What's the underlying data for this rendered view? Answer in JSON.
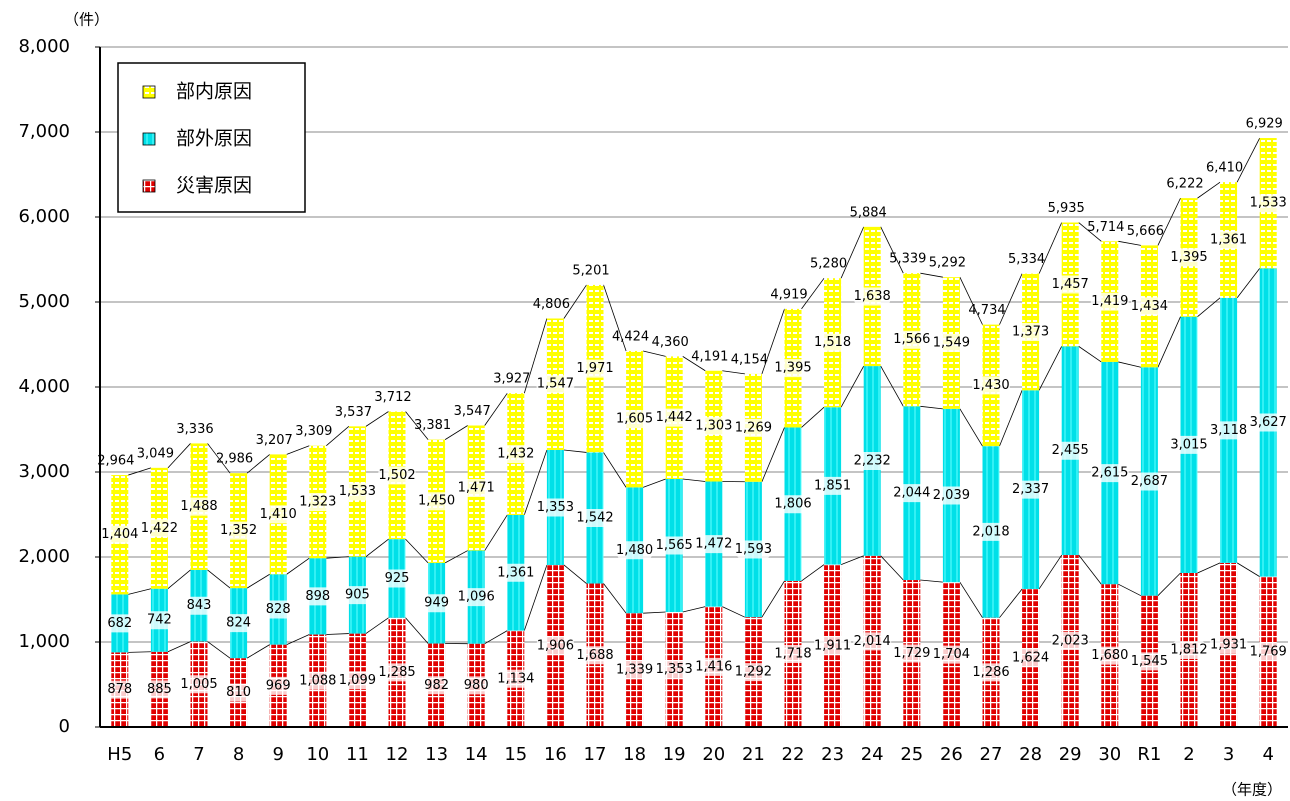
{
  "chart_data": {
    "type": "stacked_bar",
    "y_label": "（件）",
    "x_label": "（年度）",
    "categories": [
      "H5",
      "6",
      "7",
      "8",
      "9",
      "10",
      "11",
      "12",
      "13",
      "14",
      "15",
      "16",
      "17",
      "18",
      "19",
      "20",
      "21",
      "22",
      "23",
      "24",
      "25",
      "26",
      "27",
      "28",
      "29",
      "30",
      "R1",
      "2",
      "3",
      "4"
    ],
    "series": [
      {
        "name": "災害原因",
        "color": "#e00000",
        "values": [
          878,
          885,
          1005,
          810,
          969,
          1088,
          1099,
          1285,
          982,
          980,
          1134,
          1906,
          1688,
          1339,
          1353,
          1416,
          1292,
          1718,
          1911,
          2014,
          1729,
          1704,
          1286,
          1624,
          2023,
          1680,
          1545,
          1812,
          1931,
          1769
        ],
        "value_labels": [
          "878",
          "885",
          "1,005",
          "810",
          "969",
          "1,088",
          "1,099",
          "1,285",
          "982",
          "980",
          "1,134",
          "1,906",
          "1,688",
          "1,339",
          "1,353",
          "1,416",
          "1,292",
          "1,718",
          "1,911",
          "2,014",
          "1,729",
          "1,704",
          "1,286",
          "1,624",
          "2,023",
          "1,680",
          "1,545",
          "1,812",
          "1,931",
          "1,769"
        ]
      },
      {
        "name": "部外原因",
        "color": "#00e0e8",
        "values": [
          682,
          742,
          843,
          824,
          828,
          898,
          905,
          925,
          949,
          1096,
          1361,
          1353,
          1542,
          1480,
          1565,
          1472,
          1593,
          1806,
          1851,
          2232,
          2044,
          2039,
          2018,
          2337,
          2455,
          2615,
          2687,
          3015,
          3118,
          3627
        ],
        "value_labels": [
          "682",
          "742",
          "843",
          "824",
          "828",
          "898",
          "905",
          "925",
          "949",
          "1,096",
          "1,361",
          "1,353",
          "1,542",
          "1,480",
          "1,565",
          "1,472",
          "1,593",
          "1,806",
          "1,851",
          "2,232",
          "2,044",
          "2,039",
          "2,018",
          "2,337",
          "2,455",
          "2,615",
          "2,687",
          "3,015",
          "3,118",
          "3,627"
        ]
      },
      {
        "name": "部内原因",
        "color": "#ffff00",
        "values": [
          1404,
          1422,
          1488,
          1352,
          1410,
          1323,
          1533,
          1502,
          1450,
          1471,
          1432,
          1547,
          1971,
          1605,
          1442,
          1303,
          1269,
          1395,
          1518,
          1638,
          1566,
          1549,
          1430,
          1373,
          1457,
          1419,
          1434,
          1395,
          1361,
          1533
        ],
        "value_labels": [
          "1,404",
          "1,422",
          "1,488",
          "1,352",
          "1,410",
          "1,323",
          "1,533",
          "1,502",
          "1,450",
          "1,471",
          "1,432",
          "1,547",
          "1,971",
          "1,605",
          "1,442",
          "1,303",
          "1,269",
          "1,395",
          "1,518",
          "1,638",
          "1,566",
          "1,549",
          "1,430",
          "1,373",
          "1,457",
          "1,419",
          "1,434",
          "1,395",
          "1,361",
          "1,533"
        ]
      }
    ],
    "totals": [
      2964,
      3049,
      3336,
      2986,
      3207,
      3309,
      3537,
      3712,
      3381,
      3547,
      3927,
      4806,
      5201,
      4424,
      4360,
      4191,
      4154,
      4919,
      5280,
      5884,
      5339,
      5292,
      4734,
      5334,
      5935,
      5714,
      5666,
      6222,
      6410,
      6929
    ],
    "total_labels": [
      "2,964",
      "3,049",
      "3,336",
      "2,986",
      "3,207",
      "3,309",
      "3,537",
      "3,712",
      "3,381",
      "3,547",
      "3,927",
      "4,806",
      "5,201",
      "4,424",
      "4,360",
      "4,191",
      "4,154",
      "4,919",
      "5,280",
      "5,884",
      "5,339",
      "5,292",
      "4,734",
      "5,334",
      "5,935",
      "5,714",
      "5,666",
      "6,222",
      "6,410",
      "6,929"
    ],
    "ylim": [
      0,
      8000
    ],
    "yticks": [
      0,
      {
        "value": 1000,
        "label": "1,000"
      },
      {
        "value": 2000,
        "label": "2,000"
      },
      {
        "value": 3000,
        "label": "3,000"
      },
      {
        "value": 4000,
        "label": "4,000"
      },
      {
        "value": 5000,
        "label": "5,000"
      },
      {
        "value": 6000,
        "label": "6,000"
      },
      {
        "value": 7000,
        "label": "7,000"
      },
      {
        "value": 8000,
        "label": "8,000"
      }
    ],
    "grid": true
  }
}
